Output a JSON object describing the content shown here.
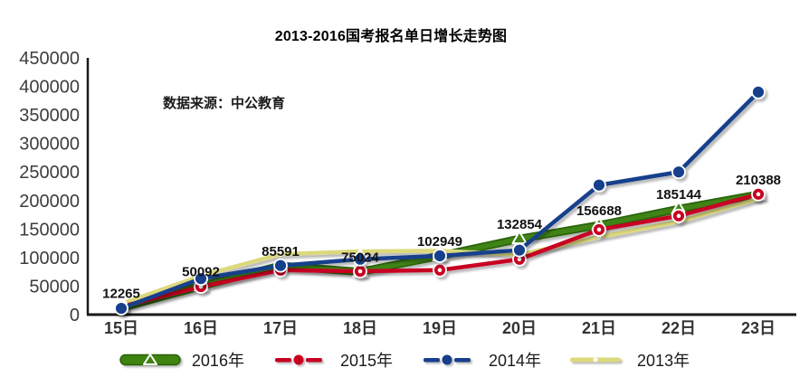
{
  "chart": {
    "title": "2013-2016国考报名单日增长走势图",
    "source_note": "数据来源：中公教育"
  },
  "chart_data": {
    "type": "line",
    "title": "2013-2016国考报名单日增长走势图",
    "source_note": "数据来源：中公教育",
    "categories": [
      "15日",
      "16日",
      "17日",
      "18日",
      "19日",
      "20日",
      "21日",
      "22日",
      "23日"
    ],
    "series": [
      {
        "name": "2016年",
        "color": "#3f8312",
        "edge_color": "#2a6307",
        "marker": "triangle",
        "line_width": "thick",
        "show_data_labels": true,
        "values": [
          12265,
          50092,
          85591,
          75024,
          102949,
          132854,
          156688,
          185144,
          210388
        ]
      },
      {
        "name": "2015年",
        "color": "#c80021",
        "marker": "dot-donut",
        "line_width": "normal",
        "show_data_labels": false,
        "values": [
          14000,
          49000,
          78000,
          76000,
          78000,
          97000,
          149000,
          173000,
          211000
        ]
      },
      {
        "name": "2014年",
        "color": "#173f8c",
        "marker": "dot",
        "line_width": "normal",
        "show_data_labels": false,
        "values": [
          11000,
          63000,
          86000,
          97000,
          103000,
          113000,
          227000,
          250000,
          390000
        ]
      },
      {
        "name": "2013年",
        "color": "#dcd97b",
        "marker": "white-dot",
        "line_width": "normal",
        "show_data_labels": false,
        "values": [
          19000,
          68000,
          106000,
          111000,
          112000,
          105000,
          136000,
          163000,
          203000
        ]
      }
    ],
    "draw_order": [
      "2016年",
      "2013年",
      "2015年",
      "2014年"
    ],
    "xlabel": "",
    "ylabel": "",
    "ylim": [
      0,
      450000
    ],
    "ytick_step": 50000,
    "grid": false,
    "legend_position": "bottom"
  }
}
